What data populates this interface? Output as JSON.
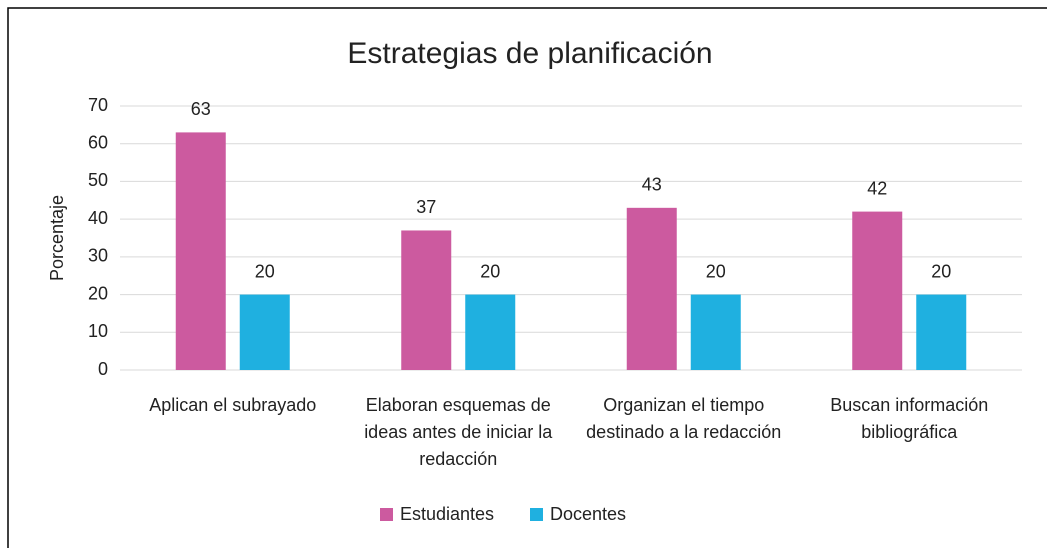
{
  "chart_data": {
    "type": "bar",
    "title": "Estrategias de planificación",
    "y_label": "Porcentaje",
    "categories": [
      "Aplican el subrayado",
      "Elaboran esquemas de ideas antes de iniciar la redacción",
      "Organizan el tiempo destinado a la redacción",
      "Buscan información bibliográfica"
    ],
    "series": [
      {
        "name": "Estudiantes",
        "color": "#cc5a9f",
        "values": [
          63,
          37,
          43,
          42
        ]
      },
      {
        "name": "Docentes",
        "color": "#1fb0e0",
        "values": [
          20,
          20,
          20,
          20
        ]
      }
    ],
    "ylim": [
      0,
      70
    ],
    "yticks": [
      0,
      10,
      20,
      30,
      40,
      50,
      60,
      70
    ],
    "grid": true,
    "legend": "bottom"
  }
}
